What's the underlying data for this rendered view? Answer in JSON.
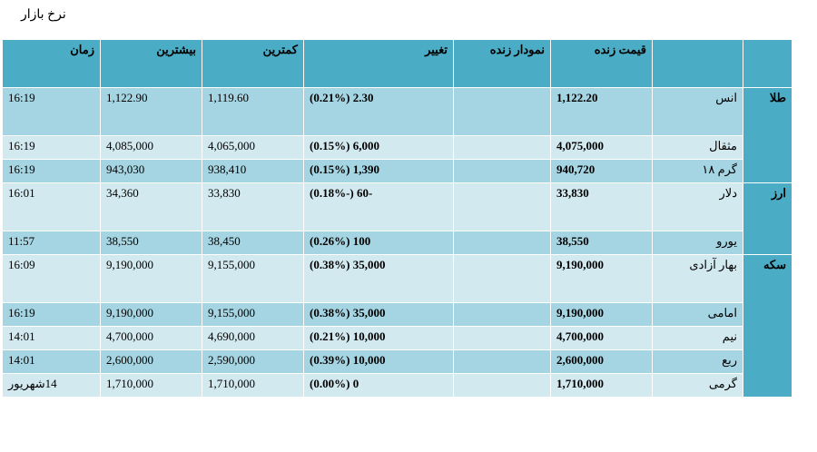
{
  "page": {
    "title": "نرخ بازار"
  },
  "table": {
    "headers": {
      "name": "",
      "price": "قیمت زنده",
      "chart": "نمودار زنده",
      "change": "تغییر",
      "low": "کمترین",
      "high": "بیشترین",
      "time": "زمان"
    },
    "categories": [
      "طلا",
      "ارز",
      "سکه"
    ],
    "rows": [
      {
        "name": "انس",
        "price": "1,122.20",
        "change": "2.30 (0.21%)",
        "low": "1,119.60",
        "high": "1,122.90",
        "time": "16:19"
      },
      {
        "name": "مثقال",
        "price": "4,075,000",
        "change": "6,000 (0.15%)",
        "low": "4,065,000",
        "high": "4,085,000",
        "time": "16:19"
      },
      {
        "name": "گرم ۱۸",
        "price": "940,720",
        "change": "1,390 (0.15%)",
        "low": "938,410",
        "high": "943,030",
        "time": "16:19"
      },
      {
        "name": "دلار",
        "price": "33,830",
        "change": "-60 (-0.18%)",
        "low": "33,830",
        "high": "34,360",
        "time": "16:01"
      },
      {
        "name": "یورو",
        "price": "38,550",
        "change": "100 (0.26%)",
        "low": "38,450",
        "high": "38,550",
        "time": "11:57"
      },
      {
        "name": "بهار آزادی",
        "price": "9,190,000",
        "change": "35,000 (0.38%)",
        "low": "9,155,000",
        "high": "9,190,000",
        "time": "16:09"
      },
      {
        "name": "امامی",
        "price": "9,190,000",
        "change": "35,000 (0.38%)",
        "low": "9,155,000",
        "high": "9,190,000",
        "time": "16:19"
      },
      {
        "name": "نیم",
        "price": "4,700,000",
        "change": "10,000 (0.21%)",
        "low": "4,690,000",
        "high": "4,700,000",
        "time": "14:01"
      },
      {
        "name": "ربع",
        "price": "2,600,000",
        "change": "10,000 (0.39%)",
        "low": "2,590,000",
        "high": "2,600,000",
        "time": "14:01"
      },
      {
        "name": "گرمی",
        "price": "1,710,000",
        "change": "0 (0.00%)",
        "low": "1,710,000",
        "high": "1,710,000",
        "time": "14شهریور"
      }
    ]
  },
  "colors": {
    "header": "#4bacc6",
    "row_light": "#d2e9f0",
    "row_dark": "#a5d5e2"
  }
}
